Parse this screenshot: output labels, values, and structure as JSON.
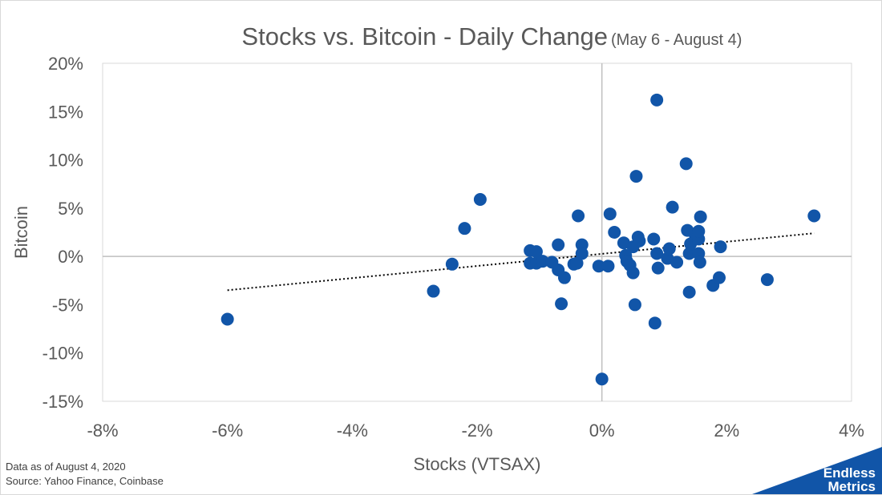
{
  "chart_data": {
    "type": "scatter",
    "title": "Stocks vs. Bitcoin - Daily Change",
    "subtitle": "(May 6 - August 4)",
    "xlabel": "Stocks (VTSAX)",
    "ylabel": "Bitcoin",
    "xlim": [
      -8,
      4
    ],
    "ylim": [
      -15,
      20
    ],
    "x_ticks": [
      -8,
      -6,
      -4,
      -2,
      0,
      2,
      4
    ],
    "y_ticks": [
      -15,
      -10,
      -5,
      0,
      5,
      10,
      15,
      20
    ],
    "x_tick_labels": [
      "-8%",
      "-6%",
      "-4%",
      "-2%",
      "0%",
      "2%",
      "4%"
    ],
    "y_tick_labels": [
      "-15%",
      "-10%",
      "-5%",
      "0%",
      "5%",
      "10%",
      "15%",
      "20%"
    ],
    "grid": false,
    "legend": "none",
    "trendline": {
      "style": "dotted",
      "x": [
        -6.0,
        3.4
      ],
      "y": [
        -3.5,
        2.4
      ]
    },
    "marker_color": "#1155a8",
    "series": [
      {
        "points": [
          [
            -6.0,
            -6.5
          ],
          [
            -2.7,
            -3.6
          ],
          [
            -2.4,
            -0.8
          ],
          [
            -2.2,
            2.9
          ],
          [
            -1.95,
            5.9
          ],
          [
            -1.15,
            0.6
          ],
          [
            -1.15,
            -0.7
          ],
          [
            -1.05,
            -0.7
          ],
          [
            -1.05,
            0.5
          ],
          [
            -0.95,
            -0.5
          ],
          [
            -0.8,
            -0.6
          ],
          [
            -0.7,
            1.2
          ],
          [
            -0.7,
            -1.4
          ],
          [
            -0.65,
            -4.9
          ],
          [
            -0.6,
            -2.2
          ],
          [
            -0.45,
            -0.8
          ],
          [
            -0.4,
            -0.7
          ],
          [
            -0.38,
            4.2
          ],
          [
            -0.32,
            1.2
          ],
          [
            -0.32,
            0.3
          ],
          [
            -0.05,
            -1.0
          ],
          [
            0.0,
            -12.7
          ],
          [
            0.1,
            -1.0
          ],
          [
            0.13,
            4.4
          ],
          [
            0.2,
            2.5
          ],
          [
            0.35,
            1.4
          ],
          [
            0.38,
            0.1
          ],
          [
            0.4,
            -0.5
          ],
          [
            0.45,
            -0.9
          ],
          [
            0.5,
            1.0
          ],
          [
            0.5,
            -1.7
          ],
          [
            0.53,
            -5.0
          ],
          [
            0.55,
            8.3
          ],
          [
            0.58,
            2.0
          ],
          [
            0.6,
            1.6
          ],
          [
            0.83,
            1.8
          ],
          [
            0.85,
            -6.9
          ],
          [
            0.88,
            16.2
          ],
          [
            0.88,
            0.3
          ],
          [
            0.9,
            -1.2
          ],
          [
            1.05,
            -0.2
          ],
          [
            1.08,
            0.8
          ],
          [
            1.13,
            5.1
          ],
          [
            1.2,
            -0.6
          ],
          [
            1.35,
            9.6
          ],
          [
            1.37,
            2.7
          ],
          [
            1.4,
            0.3
          ],
          [
            1.42,
            1.3
          ],
          [
            1.4,
            -3.7
          ],
          [
            1.5,
            2.1
          ],
          [
            1.55,
            1.8
          ],
          [
            1.55,
            2.6
          ],
          [
            1.55,
            0.3
          ],
          [
            1.57,
            -0.6
          ],
          [
            1.58,
            4.1
          ],
          [
            1.78,
            -3.0
          ],
          [
            1.88,
            -2.2
          ],
          [
            1.9,
            1.0
          ],
          [
            2.65,
            -2.4
          ],
          [
            3.4,
            4.2
          ]
        ]
      }
    ]
  },
  "footer": {
    "note_line1": "Data as of August 4, 2020",
    "note_line2": "Source: Yahoo Finance, Coinbase"
  },
  "logo": {
    "line1": "Endless",
    "line2": "Metrics",
    "color": "#1155a8"
  }
}
